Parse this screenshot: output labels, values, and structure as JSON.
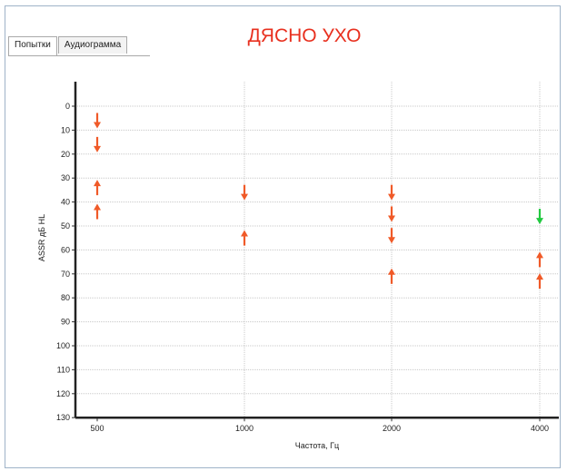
{
  "tabs": [
    {
      "label": "Попытки",
      "active": true
    },
    {
      "label": "Аудиограмма",
      "active": false
    }
  ],
  "title": "ДЯСНО УХО",
  "colors": {
    "title": "#e8301f",
    "marker_orange": "#f05a28",
    "marker_green": "#22c940"
  },
  "chart_data": {
    "type": "scatter",
    "title": "ДЯСНО УХО",
    "xlabel": "Частота, Гц",
    "ylabel": "ASSR дБ HL",
    "x_categories": [
      "500",
      "1000",
      "2000",
      "4000"
    ],
    "y_ticks": [
      0,
      10,
      20,
      30,
      40,
      50,
      60,
      70,
      80,
      90,
      100,
      110,
      120,
      130
    ],
    "ylim": [
      0,
      130
    ],
    "y_inverted": true,
    "grid": true,
    "series": [
      {
        "color": "orange",
        "direction": "down",
        "points": [
          [
            500,
            7
          ],
          [
            500,
            17
          ],
          [
            1000,
            37
          ],
          [
            2000,
            37
          ],
          [
            2000,
            46
          ],
          [
            2000,
            55
          ]
        ]
      },
      {
        "color": "orange",
        "direction": "up",
        "points": [
          [
            500,
            33
          ],
          [
            500,
            43
          ],
          [
            1000,
            54
          ],
          [
            2000,
            70
          ],
          [
            4000,
            63
          ],
          [
            4000,
            72
          ]
        ]
      },
      {
        "color": "green",
        "direction": "down",
        "points": [
          [
            4000,
            47
          ]
        ]
      }
    ]
  }
}
